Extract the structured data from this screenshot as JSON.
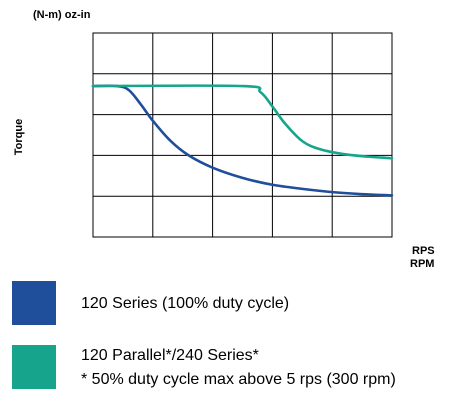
{
  "chart_data": {
    "type": "line",
    "title": "",
    "units_label": "(N-m)  oz-in",
    "ylabel": "Torque",
    "xlabel_lines": [
      "RPS",
      "RPM"
    ],
    "grid": true,
    "series": [
      {
        "name": "120 Series (100% duty cycle)",
        "color": "#1f4e9b",
        "points": [
          [
            0.0,
            3.7
          ],
          [
            0.4,
            3.7
          ],
          [
            0.6,
            3.6
          ],
          [
            0.8,
            3.25
          ],
          [
            1.0,
            2.85
          ],
          [
            1.3,
            2.35
          ],
          [
            1.6,
            2.0
          ],
          [
            2.0,
            1.7
          ],
          [
            2.5,
            1.45
          ],
          [
            3.0,
            1.28
          ],
          [
            3.5,
            1.18
          ],
          [
            4.0,
            1.1
          ],
          [
            4.5,
            1.05
          ],
          [
            5.0,
            1.02
          ]
        ]
      },
      {
        "name": "120 Parallel*/240 Series*",
        "color": "#16a58c",
        "points": [
          [
            0.0,
            3.7
          ],
          [
            2.5,
            3.7
          ],
          [
            2.8,
            3.55
          ],
          [
            3.0,
            3.2
          ],
          [
            3.2,
            2.8
          ],
          [
            3.5,
            2.35
          ],
          [
            3.8,
            2.15
          ],
          [
            4.2,
            2.03
          ],
          [
            4.6,
            1.97
          ],
          [
            5.0,
            1.93
          ]
        ]
      }
    ],
    "xlim": [
      0,
      5
    ],
    "ylim": [
      0,
      5
    ],
    "grid_columns": 5,
    "grid_rows": 5
  },
  "legend": [
    {
      "color": "#1f4e9b",
      "lines": [
        "120 Series (100% duty cycle)"
      ]
    },
    {
      "color": "#16a58c",
      "lines": [
        "120 Parallel*/240 Series*",
        "* 50% duty cycle max above 5 rps (300 rpm)"
      ]
    }
  ]
}
